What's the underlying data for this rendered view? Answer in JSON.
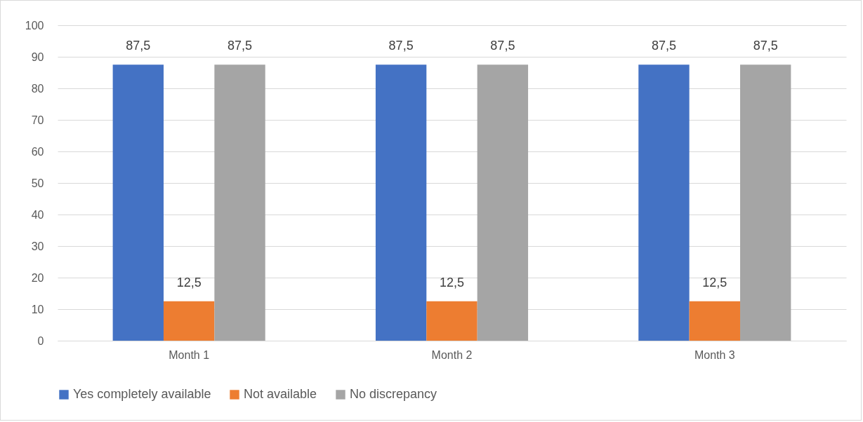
{
  "chart_data": {
    "type": "bar",
    "categories": [
      "Month 1",
      "Month 2",
      "Month 3"
    ],
    "series": [
      {
        "name": "Yes completely available",
        "color": "#4472c4",
        "values": [
          87.5,
          87.5,
          87.5
        ],
        "value_labels": [
          "87,5",
          "87,5",
          "87,5"
        ]
      },
      {
        "name": "Not available",
        "color": "#ed7d31",
        "values": [
          12.5,
          12.5,
          12.5
        ],
        "value_labels": [
          "12,5",
          "12,5",
          "12,5"
        ]
      },
      {
        "name": "No discrepancy",
        "color": "#a5a5a5",
        "values": [
          87.5,
          87.5,
          87.5
        ],
        "value_labels": [
          "87,5",
          "87,5",
          "87,5"
        ]
      }
    ],
    "ylim": [
      0,
      100
    ],
    "yticks": [
      0,
      10,
      20,
      30,
      40,
      50,
      60,
      70,
      80,
      90,
      100
    ],
    "grid": "y",
    "legend": "bottom"
  }
}
